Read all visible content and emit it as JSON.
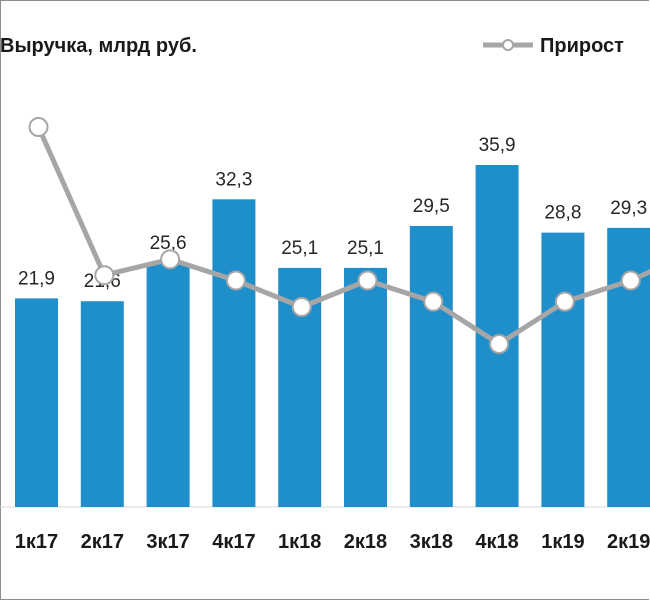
{
  "chart_data": {
    "type": "bar",
    "categories": [
      "1к17",
      "2к17",
      "3к17",
      "4к17",
      "1к18",
      "2к18",
      "3к18",
      "4к18",
      "1к19",
      "2к19"
    ],
    "series": [
      {
        "name": "Выручка, млрд руб.",
        "type": "bar",
        "values": [
          21.9,
          21.6,
          25.6,
          32.3,
          25.1,
          25.1,
          29.5,
          35.9,
          28.8,
          29.3
        ],
        "value_labels": [
          "21,9",
          "21,6",
          "25,6",
          "32,3",
          "25,1",
          "25,1",
          "29,5",
          "35,9",
          "28,8",
          "29,3"
        ],
        "color": "#1f8fcc"
      },
      {
        "name": "Прирост",
        "type": "line",
        "values": [
          48,
          20,
          23,
          19,
          14,
          19,
          15,
          7,
          15,
          19
        ],
        "color": "#a6a6a6"
      }
    ],
    "ylim": [
      0,
      40
    ],
    "y2lim": [
      0,
      60
    ],
    "grid": false,
    "legend": "top"
  }
}
